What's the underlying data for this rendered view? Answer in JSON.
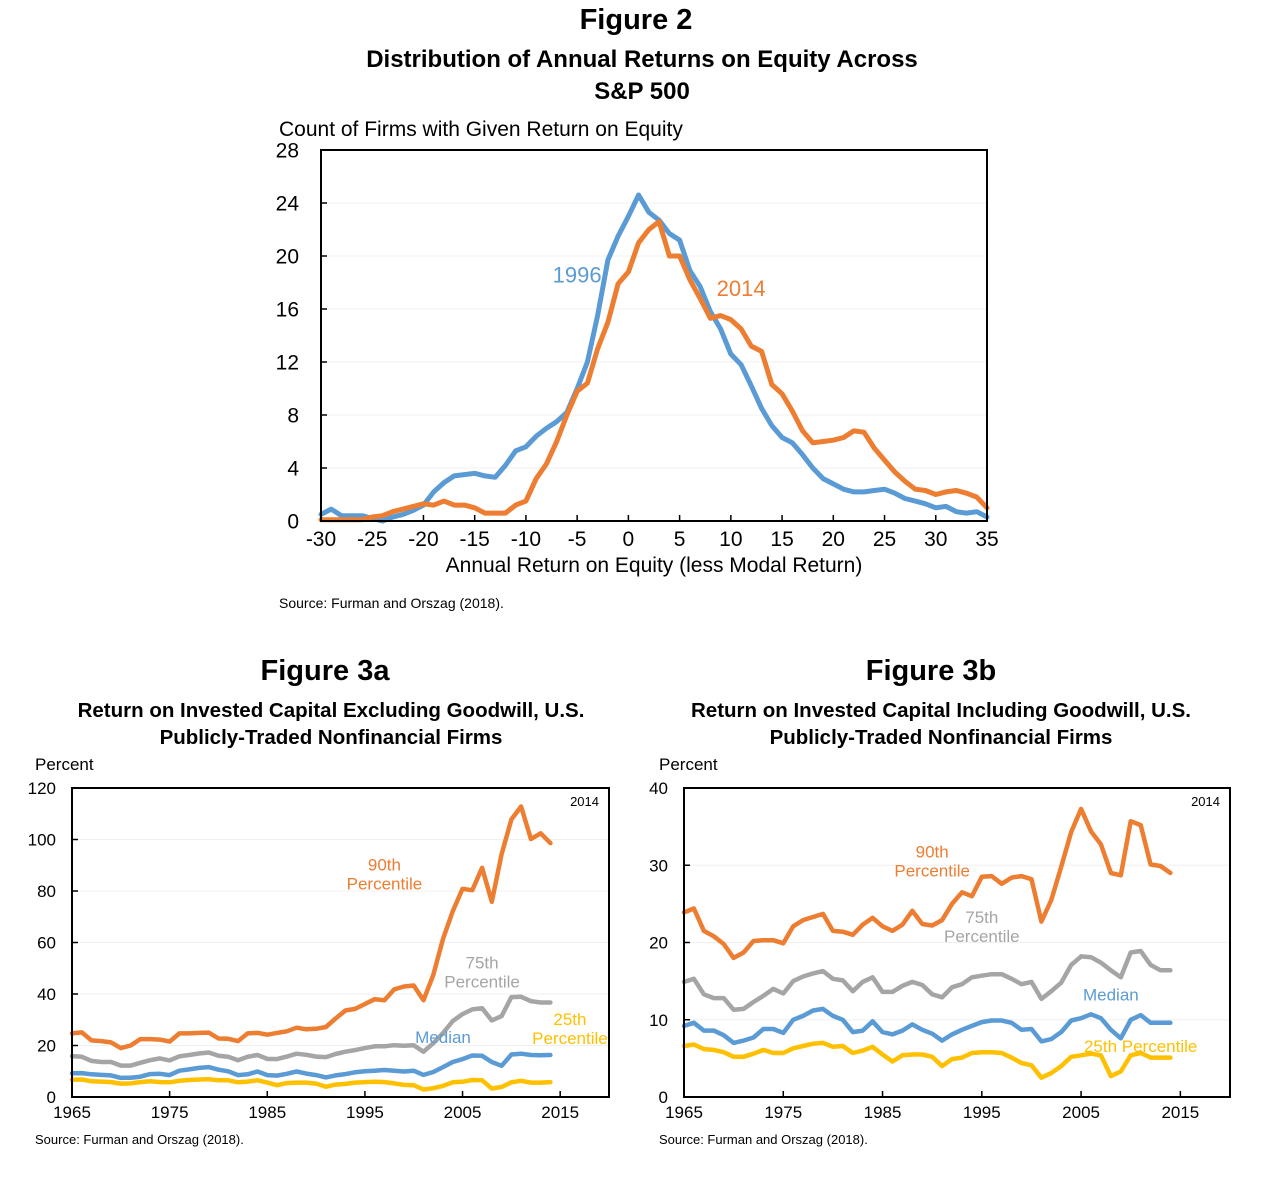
{
  "colors": {
    "orange": "#ED7D31",
    "blue": "#5B9BD5",
    "gray": "#A5A5A5",
    "yellow": "#FFC000",
    "axis": "#000000",
    "grid": "#F0F0F0"
  },
  "figure2": {
    "number": "Figure 2",
    "title_line1": "Distribution of Annual Returns on Equity Across",
    "title_line2": "S&P 500",
    "source": "Source: Furman and Orszag (2018)."
  },
  "figure3a": {
    "number": "Figure 3a",
    "title_line1": "Return on Invested Capital Excluding Goodwill, U.S.",
    "title_line2": "Publicly-Traded Nonfinancial Firms",
    "source": "Source: Furman and Orszag (2018)."
  },
  "figure3b": {
    "number": "Figure 3b",
    "title_line1": "Return on Invested Capital Including Goodwill, U.S.",
    "title_line2": "Publicly-Traded Nonfinancial Firms",
    "source": "Source: Furman and Orszag (2018)."
  },
  "chart_data": [
    {
      "id": "figure2",
      "type": "line",
      "title": "Distribution of Annual Returns on Equity Across S&P 500",
      "ylabel": "Count of Firms with Given Return on Equity",
      "xlabel": "Annual Return on Equity (less Modal Return)",
      "xlim": [
        -30,
        35
      ],
      "ylim": [
        0,
        28
      ],
      "xticks": [
        -30,
        -25,
        -20,
        -15,
        -10,
        -5,
        0,
        5,
        10,
        15,
        20,
        25,
        30,
        35
      ],
      "yticks": [
        0,
        4,
        8,
        12,
        16,
        20,
        24,
        28
      ],
      "grid": true,
      "legend": "inline labels",
      "x": [
        -30,
        -29,
        -28,
        -27,
        -26,
        -25,
        -24,
        -23,
        -22,
        -21,
        -20,
        -19,
        -18,
        -17,
        -16,
        -15,
        -14,
        -13,
        -12,
        -11,
        -10,
        -9,
        -8,
        -7,
        -6,
        -5,
        -4,
        -3,
        -2,
        -1,
        0,
        1,
        2,
        3,
        4,
        5,
        6,
        7,
        8,
        9,
        10,
        11,
        12,
        13,
        14,
        15,
        16,
        17,
        18,
        19,
        20,
        21,
        22,
        23,
        24,
        25,
        26,
        27,
        28,
        29,
        30,
        31,
        32,
        33,
        34,
        35
      ],
      "series": [
        {
          "name": "1996",
          "color": "#5B9BD5",
          "label_at": [
            -5,
            18
          ],
          "values": [
            0.5,
            0.9,
            0.4,
            0.4,
            0.4,
            0.2,
            0.0,
            0.3,
            0.5,
            0.8,
            1.2,
            2.2,
            2.9,
            3.4,
            3.5,
            3.6,
            3.4,
            3.3,
            4.2,
            5.3,
            5.6,
            6.4,
            7.0,
            7.5,
            8.2,
            10.0,
            12.0,
            15.5,
            19.7,
            21.5,
            23.0,
            24.6,
            23.3,
            22.7,
            21.7,
            21.2,
            18.9,
            17.7,
            15.8,
            14.5,
            12.6,
            11.8,
            10.2,
            8.5,
            7.2,
            6.3,
            5.9,
            5.0,
            4.0,
            3.2,
            2.8,
            2.4,
            2.2,
            2.2,
            2.3,
            2.4,
            2.1,
            1.7,
            1.5,
            1.3,
            1.0,
            1.1,
            0.7,
            0.6,
            0.7,
            0.3
          ]
        },
        {
          "name": "2014",
          "color": "#ED7D31",
          "label_at": [
            11,
            17
          ],
          "values": [
            0.1,
            0.1,
            0.1,
            0.1,
            0.1,
            0.3,
            0.4,
            0.7,
            0.9,
            1.1,
            1.3,
            1.2,
            1.5,
            1.2,
            1.2,
            1.0,
            0.6,
            0.6,
            0.6,
            1.2,
            1.5,
            3.2,
            4.3,
            6.0,
            8.0,
            9.8,
            10.4,
            13.0,
            15.0,
            17.9,
            18.8,
            21.0,
            22.0,
            22.6,
            20.0,
            20.0,
            18.2,
            16.8,
            15.3,
            15.5,
            15.2,
            14.5,
            13.2,
            12.8,
            10.3,
            9.6,
            8.3,
            6.8,
            5.9,
            6.0,
            6.1,
            6.3,
            6.8,
            6.7,
            5.5,
            4.6,
            3.7,
            3.0,
            2.4,
            2.3,
            2.0,
            2.2,
            2.3,
            2.1,
            1.8,
            1.0
          ]
        }
      ],
      "annotations": [
        "1996",
        "2014"
      ]
    },
    {
      "id": "figure3a",
      "type": "line",
      "title": "Return on Invested Capital Excluding Goodwill, U.S. Publicly-Traded Nonfinancial Firms",
      "ylabel": "Percent",
      "xlabel": "",
      "xlim": [
        1965,
        2020
      ],
      "ylim": [
        0,
        120
      ],
      "xticks": [
        1965,
        1975,
        1985,
        1995,
        2005,
        2015
      ],
      "yticks": [
        0,
        20,
        40,
        60,
        80,
        100,
        120
      ],
      "grid": true,
      "corner_note": "2014",
      "x": [
        1965,
        1966,
        1967,
        1968,
        1969,
        1970,
        1971,
        1972,
        1973,
        1974,
        1975,
        1976,
        1977,
        1978,
        1979,
        1980,
        1981,
        1982,
        1983,
        1984,
        1985,
        1986,
        1987,
        1988,
        1989,
        1990,
        1991,
        1992,
        1993,
        1994,
        1995,
        1996,
        1997,
        1998,
        1999,
        2000,
        2001,
        2002,
        2003,
        2004,
        2005,
        2006,
        2007,
        2008,
        2009,
        2010,
        2011,
        2012,
        2013,
        2014
      ],
      "series": [
        {
          "name": "90th Percentile",
          "label_lines": [
            "90th",
            "Percentile"
          ],
          "label_at": [
            1997,
            88
          ],
          "color": "#ED7D31",
          "values": [
            24.7,
            25.1,
            22.0,
            21.7,
            21.2,
            19.0,
            20.0,
            22.5,
            22.5,
            22.3,
            21.5,
            24.7,
            24.7,
            24.9,
            25.0,
            22.7,
            22.6,
            21.7,
            24.7,
            24.9,
            24.2,
            24.9,
            25.5,
            26.9,
            26.3,
            26.5,
            27.2,
            30.5,
            33.6,
            34.2,
            36.1,
            38.0,
            37.6,
            41.8,
            42.9,
            43.3,
            37.6,
            47.4,
            61.4,
            72.2,
            80.8,
            80.3,
            89.0,
            75.8,
            94.3,
            107.8,
            112.8,
            100.2,
            102.4,
            98.6
          ]
        },
        {
          "name": "75th Percentile",
          "label_lines": [
            "75th",
            "Percentile"
          ],
          "label_at": [
            2007,
            50
          ],
          "color": "#A5A5A5",
          "values": [
            15.9,
            15.6,
            14.0,
            13.6,
            13.6,
            12.2,
            12.2,
            13.3,
            14.3,
            15.0,
            14.2,
            15.8,
            16.3,
            16.9,
            17.3,
            16.0,
            15.6,
            14.3,
            15.6,
            16.3,
            14.8,
            14.7,
            15.7,
            16.8,
            16.4,
            15.7,
            15.5,
            16.7,
            17.6,
            18.2,
            19.0,
            19.7,
            19.7,
            20.1,
            19.9,
            20.1,
            17.6,
            20.9,
            24.8,
            29.5,
            32.2,
            34.0,
            34.5,
            29.7,
            31.4,
            38.8,
            38.9,
            37.2,
            36.7,
            36.7
          ]
        },
        {
          "name": "Median",
          "label_lines": [
            "Median"
          ],
          "label_at": [
            2003,
            21
          ],
          "color": "#5B9BD5",
          "values": [
            9.2,
            9.3,
            8.8,
            8.6,
            8.4,
            7.4,
            7.5,
            7.9,
            8.9,
            9.0,
            8.5,
            10.2,
            10.7,
            11.3,
            11.6,
            10.6,
            10.0,
            8.5,
            8.8,
            9.9,
            8.5,
            8.3,
            9.0,
            9.9,
            9.1,
            8.5,
            7.6,
            8.4,
            8.9,
            9.6,
            10.0,
            10.2,
            10.5,
            10.2,
            9.9,
            10.2,
            8.6,
            9.7,
            11.6,
            13.6,
            14.7,
            16.1,
            16.0,
            13.6,
            12.1,
            16.5,
            16.8,
            16.3,
            16.2,
            16.3
          ]
        },
        {
          "name": "25th Percentile",
          "label_lines": [
            "25th",
            "Percentile"
          ],
          "label_at": [
            2016,
            28
          ],
          "color": "#FFC000",
          "values": [
            6.7,
            6.8,
            6.1,
            6.0,
            5.8,
            5.2,
            5.3,
            5.8,
            6.1,
            5.8,
            5.7,
            6.3,
            6.6,
            6.8,
            6.9,
            6.5,
            6.5,
            5.7,
            6.0,
            6.5,
            5.6,
            4.6,
            5.4,
            5.6,
            5.6,
            5.2,
            4.0,
            4.8,
            5.1,
            5.6,
            5.8,
            5.9,
            5.8,
            5.3,
            4.7,
            4.6,
            2.9,
            3.4,
            4.3,
            5.7,
            5.9,
            6.6,
            6.5,
            3.3,
            3.9,
            5.7,
            6.3,
            5.6,
            5.6,
            5.8
          ]
        }
      ]
    },
    {
      "id": "figure3b",
      "type": "line",
      "title": "Return on Invested Capital Including Goodwill, U.S. Publicly-Traded Nonfinancial Firms",
      "ylabel": "Percent",
      "xlabel": "",
      "xlim": [
        1965,
        2020
      ],
      "ylim": [
        0,
        40
      ],
      "xticks": [
        1965,
        1975,
        1985,
        1995,
        2005,
        2015
      ],
      "yticks": [
        0,
        10,
        20,
        30,
        40
      ],
      "grid": true,
      "corner_note": "2014",
      "x": [
        1965,
        1966,
        1967,
        1968,
        1969,
        1970,
        1971,
        1972,
        1973,
        1974,
        1975,
        1976,
        1977,
        1978,
        1979,
        1980,
        1981,
        1982,
        1983,
        1984,
        1985,
        1986,
        1987,
        1988,
        1989,
        1990,
        1991,
        1992,
        1993,
        1994,
        1995,
        1996,
        1997,
        1998,
        1999,
        2000,
        2001,
        2002,
        2003,
        2004,
        2005,
        2006,
        2007,
        2008,
        2009,
        2010,
        2011,
        2012,
        2013,
        2014
      ],
      "series": [
        {
          "name": "90th Percentile",
          "label_lines": [
            "90th",
            "Percentile"
          ],
          "label_at": [
            1990,
            31
          ],
          "color": "#ED7D31",
          "values": [
            23.9,
            24.4,
            21.5,
            20.8,
            19.8,
            18.0,
            18.7,
            20.2,
            20.3,
            20.3,
            19.9,
            22.1,
            22.9,
            23.3,
            23.7,
            21.5,
            21.4,
            21.0,
            22.3,
            23.2,
            22.1,
            21.5,
            22.3,
            24.1,
            22.4,
            22.2,
            22.9,
            25.0,
            26.5,
            26.0,
            28.5,
            28.6,
            27.6,
            28.4,
            28.6,
            28.2,
            22.7,
            25.5,
            29.8,
            34.3,
            37.3,
            34.4,
            32.7,
            29.0,
            28.7,
            35.7,
            35.2,
            30.1,
            29.9,
            29.0
          ]
        },
        {
          "name": "75th Percentile",
          "label_lines": [
            "75th",
            "Percentile"
          ],
          "label_at": [
            1995,
            22.5
          ],
          "color": "#A5A5A5",
          "values": [
            14.9,
            15.3,
            13.3,
            12.8,
            12.8,
            11.3,
            11.4,
            12.3,
            13.1,
            14.0,
            13.4,
            15.0,
            15.6,
            16.0,
            16.3,
            15.3,
            15.1,
            13.7,
            14.9,
            15.5,
            13.6,
            13.6,
            14.4,
            14.9,
            14.5,
            13.3,
            12.9,
            14.2,
            14.6,
            15.5,
            15.7,
            15.9,
            15.9,
            15.3,
            14.6,
            14.9,
            12.7,
            13.7,
            14.8,
            17.1,
            18.2,
            18.1,
            17.4,
            16.4,
            15.5,
            18.7,
            18.9,
            17.1,
            16.4,
            16.4
          ]
        },
        {
          "name": "Median",
          "label_lines": [
            "Median"
          ],
          "label_at": [
            2008,
            12.5
          ],
          "color": "#5B9BD5",
          "values": [
            9.2,
            9.6,
            8.6,
            8.6,
            8.0,
            7.0,
            7.3,
            7.7,
            8.8,
            8.8,
            8.3,
            10.0,
            10.5,
            11.2,
            11.4,
            10.5,
            10.0,
            8.4,
            8.6,
            9.8,
            8.4,
            8.1,
            8.6,
            9.4,
            8.7,
            8.2,
            7.3,
            8.1,
            8.7,
            9.2,
            9.7,
            9.9,
            9.9,
            9.6,
            8.7,
            8.8,
            7.2,
            7.5,
            8.4,
            9.9,
            10.2,
            10.7,
            10.2,
            8.7,
            7.6,
            10.0,
            10.6,
            9.6,
            9.6,
            9.6
          ]
        },
        {
          "name": "25th Percentile",
          "label_lines": [
            "25th Percentile"
          ],
          "label_at": [
            2011,
            5.8
          ],
          "color": "#FFC000",
          "values": [
            6.6,
            6.8,
            6.2,
            6.1,
            5.8,
            5.2,
            5.2,
            5.6,
            6.1,
            5.7,
            5.7,
            6.3,
            6.6,
            6.9,
            7.0,
            6.5,
            6.6,
            5.7,
            6.0,
            6.5,
            5.5,
            4.6,
            5.4,
            5.5,
            5.5,
            5.2,
            4.0,
            4.9,
            5.1,
            5.7,
            5.8,
            5.8,
            5.7,
            5.1,
            4.4,
            4.1,
            2.5,
            3.1,
            4.0,
            5.2,
            5.4,
            5.6,
            5.4,
            2.7,
            3.3,
            5.4,
            5.7,
            5.1,
            5.1,
            5.1
          ]
        }
      ]
    }
  ]
}
